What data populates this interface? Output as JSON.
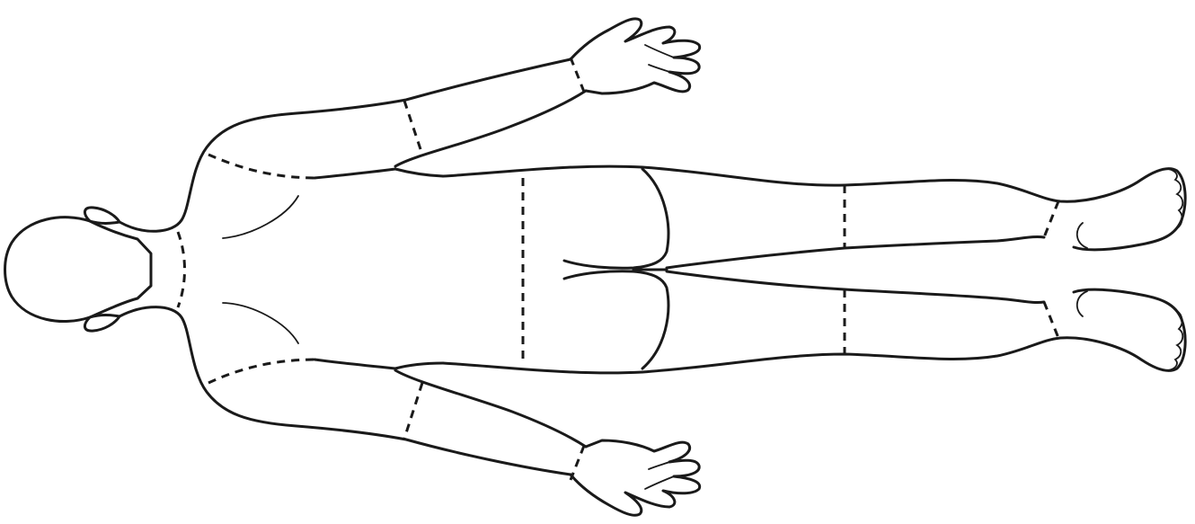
{
  "diagram": {
    "subject": "body-outline-back-view",
    "colors": {
      "stroke": "#1a1a1a",
      "fill": "#ffffff",
      "background": "#ffffff"
    }
  }
}
